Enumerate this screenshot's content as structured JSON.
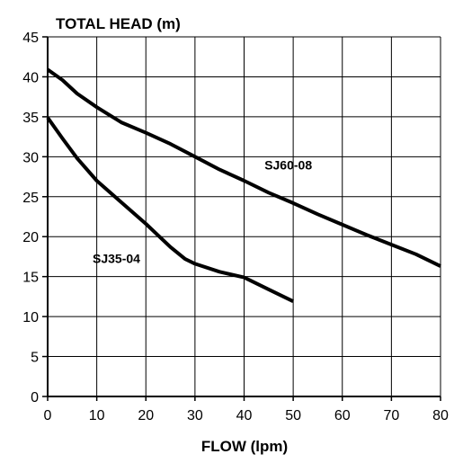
{
  "chart_data": {
    "type": "line",
    "ylabel": "TOTAL HEAD (m)",
    "xlabel": "FLOW (lpm)",
    "xlim": [
      0,
      80
    ],
    "ylim": [
      0,
      45
    ],
    "xticks": [
      0,
      10,
      20,
      30,
      40,
      50,
      60,
      70,
      80
    ],
    "yticks": [
      0,
      5,
      10,
      15,
      20,
      25,
      30,
      35,
      40,
      45
    ],
    "grid": true,
    "legend": "none",
    "line_color": "#000000",
    "series": [
      {
        "name": "SJ60-08",
        "x": [
          0,
          3,
          6,
          10,
          15,
          20,
          25,
          30,
          35,
          40,
          45,
          50,
          55,
          60,
          65,
          70,
          75,
          80
        ],
        "y": [
          40.9,
          39.6,
          37.9,
          36.2,
          34.3,
          33.0,
          31.6,
          30.0,
          28.4,
          27.0,
          25.5,
          24.2,
          22.8,
          21.5,
          20.2,
          19.0,
          17.8,
          16.3
        ]
      },
      {
        "name": "SJ35-04",
        "x": [
          0,
          3,
          6,
          10,
          15,
          20,
          25,
          28,
          30,
          35,
          40,
          45,
          50
        ],
        "y": [
          34.9,
          32.3,
          29.8,
          27.0,
          24.3,
          21.6,
          18.7,
          17.2,
          16.6,
          15.6,
          14.9,
          13.4,
          11.9
        ]
      }
    ],
    "annotations": [
      {
        "text": "SJ60-08",
        "x": 49,
        "y": 28.4
      },
      {
        "text": "SJ35-04",
        "x": 14,
        "y": 16.7
      }
    ]
  }
}
